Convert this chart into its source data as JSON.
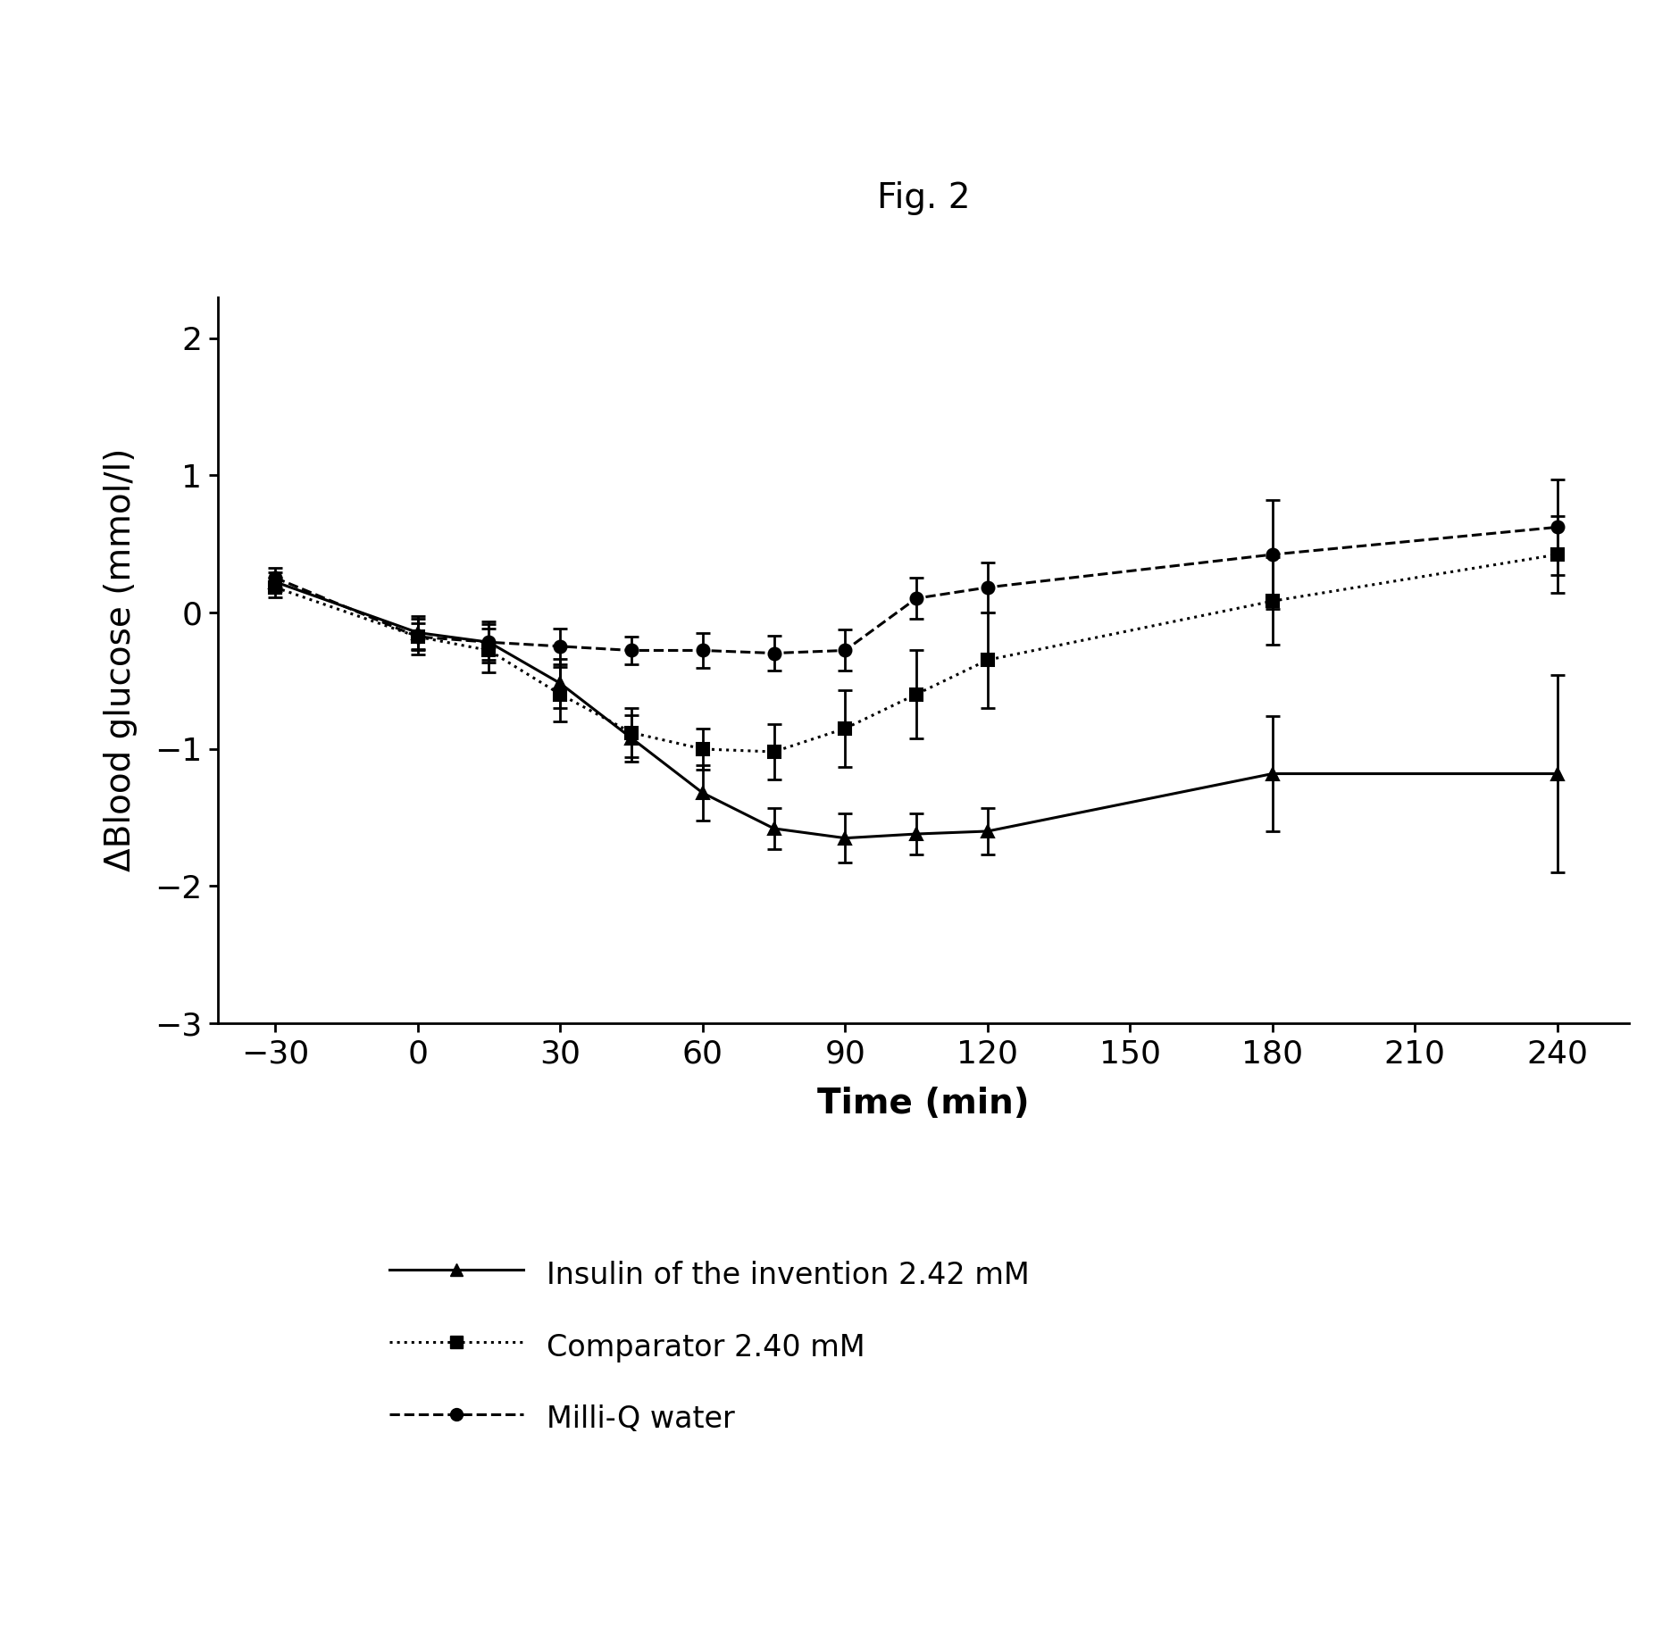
{
  "title": "Fig. 2",
  "xlabel": "Time (min)",
  "ylabel": "ΔBlood glucose (mmol/l)",
  "xlim": [
    -42,
    255
  ],
  "ylim": [
    -3,
    2.3
  ],
  "xticks": [
    -30,
    0,
    30,
    60,
    90,
    120,
    150,
    180,
    210,
    240
  ],
  "yticks": [
    -3,
    -2,
    -1,
    0,
    1,
    2
  ],
  "series": [
    {
      "name": "Insulin of the invention 2.42 mM",
      "x": [
        -30,
        0,
        15,
        30,
        45,
        60,
        75,
        90,
        105,
        120,
        180,
        240
      ],
      "y": [
        0.22,
        -0.15,
        -0.22,
        -0.52,
        -0.92,
        -1.32,
        -1.58,
        -1.65,
        -1.62,
        -1.6,
        -1.18,
        -1.18
      ],
      "yerr": [
        0.07,
        0.12,
        0.15,
        0.18,
        0.17,
        0.2,
        0.15,
        0.18,
        0.15,
        0.17,
        0.42,
        0.72
      ],
      "linestyle": "solid",
      "marker": "^",
      "color": "#000000",
      "linewidth": 2.2,
      "markersize": 10
    },
    {
      "name": "Comparator 2.40 mM",
      "x": [
        -30,
        0,
        15,
        30,
        45,
        60,
        75,
        90,
        105,
        120,
        180,
        240
      ],
      "y": [
        0.18,
        -0.18,
        -0.28,
        -0.6,
        -0.88,
        -1.0,
        -1.02,
        -0.85,
        -0.6,
        -0.35,
        0.08,
        0.42
      ],
      "yerr": [
        0.07,
        0.13,
        0.16,
        0.2,
        0.18,
        0.15,
        0.2,
        0.28,
        0.32,
        0.35,
        0.32,
        0.28
      ],
      "linestyle": "dotted",
      "marker": "s",
      "color": "#000000",
      "linewidth": 2.2,
      "markersize": 10
    },
    {
      "name": "Milli-Q water",
      "x": [
        -30,
        0,
        15,
        30,
        45,
        60,
        75,
        90,
        105,
        120,
        180,
        240
      ],
      "y": [
        0.25,
        -0.18,
        -0.22,
        -0.25,
        -0.28,
        -0.28,
        -0.3,
        -0.28,
        0.1,
        0.18,
        0.42,
        0.62
      ],
      "yerr": [
        0.07,
        0.1,
        0.13,
        0.13,
        0.1,
        0.13,
        0.13,
        0.15,
        0.15,
        0.18,
        0.4,
        0.35
      ],
      "linestyle": "dashed",
      "marker": "o",
      "color": "#000000",
      "linewidth": 2.2,
      "markersize": 10
    }
  ],
  "background_color": "#ffffff",
  "title_fontsize": 28,
  "label_fontsize": 28,
  "tick_fontsize": 26,
  "legend_fontsize": 24
}
